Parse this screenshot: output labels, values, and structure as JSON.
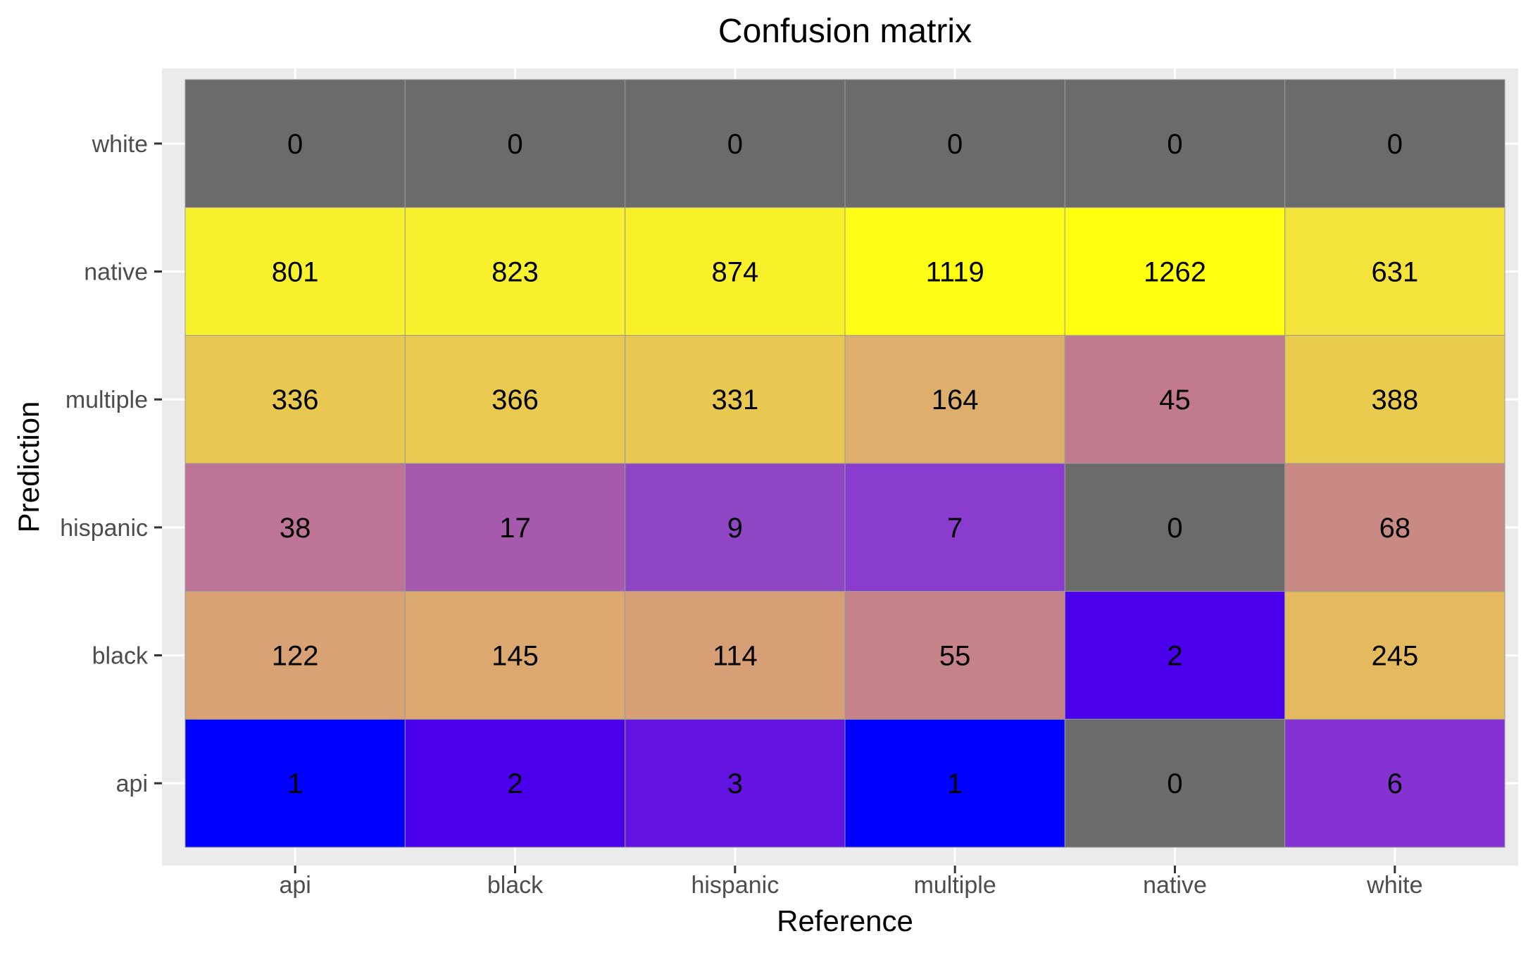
{
  "chart_data": {
    "type": "heatmap",
    "title": "Confusion matrix",
    "xlabel": "Reference",
    "ylabel": "Prediction",
    "x_categories": [
      "api",
      "black",
      "hispanic",
      "multiple",
      "native",
      "white"
    ],
    "y_categories": [
      "api",
      "black",
      "hispanic",
      "multiple",
      "native",
      "white"
    ],
    "cells": [
      {
        "reference": "api",
        "prediction": "white",
        "value": 0,
        "color": "#6b6b6b"
      },
      {
        "reference": "black",
        "prediction": "white",
        "value": 0,
        "color": "#6b6b6b"
      },
      {
        "reference": "hispanic",
        "prediction": "white",
        "value": 0,
        "color": "#6b6b6b"
      },
      {
        "reference": "multiple",
        "prediction": "white",
        "value": 0,
        "color": "#6b6b6b"
      },
      {
        "reference": "native",
        "prediction": "white",
        "value": 0,
        "color": "#6b6b6b"
      },
      {
        "reference": "white",
        "prediction": "white",
        "value": 0,
        "color": "#6b6b6b"
      },
      {
        "reference": "api",
        "prediction": "native",
        "value": 801,
        "color": "#f7f12e"
      },
      {
        "reference": "black",
        "prediction": "native",
        "value": 823,
        "color": "#f7f12e"
      },
      {
        "reference": "hispanic",
        "prediction": "native",
        "value": 874,
        "color": "#f8f12a"
      },
      {
        "reference": "multiple",
        "prediction": "native",
        "value": 1119,
        "color": "#fcfc14"
      },
      {
        "reference": "native",
        "prediction": "native",
        "value": 1262,
        "color": "#ffff10"
      },
      {
        "reference": "white",
        "prediction": "native",
        "value": 631,
        "color": "#f4e33a"
      },
      {
        "reference": "api",
        "prediction": "multiple",
        "value": 336,
        "color": "#e8c850"
      },
      {
        "reference": "black",
        "prediction": "multiple",
        "value": 366,
        "color": "#e9c950"
      },
      {
        "reference": "hispanic",
        "prediction": "multiple",
        "value": 331,
        "color": "#e8c850"
      },
      {
        "reference": "multiple",
        "prediction": "multiple",
        "value": 164,
        "color": "#deaf6c"
      },
      {
        "reference": "native",
        "prediction": "multiple",
        "value": 45,
        "color": "#c17a8e"
      },
      {
        "reference": "white",
        "prediction": "multiple",
        "value": 388,
        "color": "#e9cb4e"
      },
      {
        "reference": "api",
        "prediction": "hispanic",
        "value": 38,
        "color": "#bd7497"
      },
      {
        "reference": "black",
        "prediction": "hispanic",
        "value": 17,
        "color": "#a55aae"
      },
      {
        "reference": "hispanic",
        "prediction": "hispanic",
        "value": 9,
        "color": "#8e46c4"
      },
      {
        "reference": "multiple",
        "prediction": "hispanic",
        "value": 7,
        "color": "#8a3cce"
      },
      {
        "reference": "native",
        "prediction": "hispanic",
        "value": 0,
        "color": "#6b6b6b"
      },
      {
        "reference": "white",
        "prediction": "hispanic",
        "value": 68,
        "color": "#c98a84"
      },
      {
        "reference": "api",
        "prediction": "black",
        "value": 122,
        "color": "#d8a274"
      },
      {
        "reference": "black",
        "prediction": "black",
        "value": 145,
        "color": "#dba970"
      },
      {
        "reference": "hispanic",
        "prediction": "black",
        "value": 114,
        "color": "#d79f76"
      },
      {
        "reference": "multiple",
        "prediction": "black",
        "value": 55,
        "color": "#c58288"
      },
      {
        "reference": "native",
        "prediction": "black",
        "value": 2,
        "color": "#4a00ea"
      },
      {
        "reference": "white",
        "prediction": "black",
        "value": 245,
        "color": "#e3bb5e"
      },
      {
        "reference": "api",
        "prediction": "api",
        "value": 1,
        "color": "#0000ff"
      },
      {
        "reference": "black",
        "prediction": "api",
        "value": 2,
        "color": "#4a00ea"
      },
      {
        "reference": "hispanic",
        "prediction": "api",
        "value": 3,
        "color": "#6414e0"
      },
      {
        "reference": "multiple",
        "prediction": "api",
        "value": 1,
        "color": "#0000ff"
      },
      {
        "reference": "native",
        "prediction": "api",
        "value": 0,
        "color": "#6b6b6b"
      },
      {
        "reference": "white",
        "prediction": "api",
        "value": 6,
        "color": "#8432d2"
      }
    ],
    "grid": true,
    "legend": "none",
    "colors": {
      "panel_background": "#ebebeb",
      "grid": "#ffffff",
      "cell_border": "#9a9a9a",
      "tick_label": "#4d4d4d",
      "tick_mark": "#333333"
    }
  }
}
